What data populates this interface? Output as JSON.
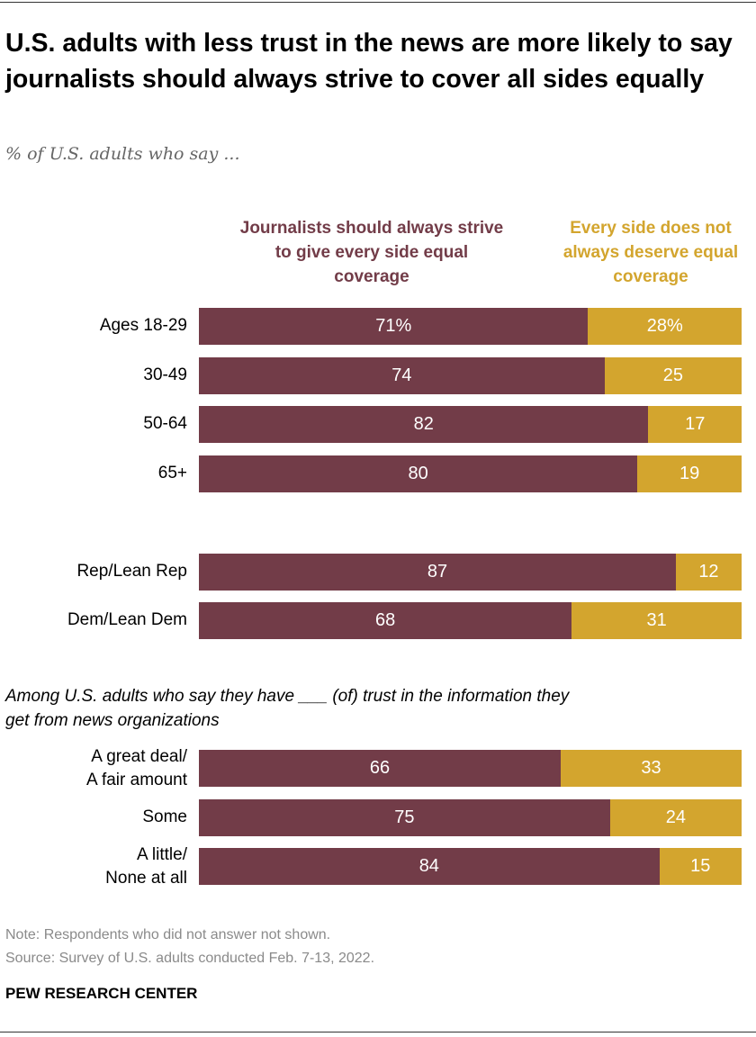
{
  "title": "U.S. adults with less trust in the news are more likely to say journalists should always strive to cover all sides equally",
  "subtitle": "% of U.S. adults who say ...",
  "note": "Note: Respondents who did not answer not shown.",
  "source": "Source: Survey of U.S. adults conducted Feb. 7-13, 2022.",
  "brand": "PEW RESEARCH CENTER",
  "colors": {
    "series1": "#723C48",
    "series2": "#D3A52E"
  },
  "chart_data": {
    "type": "bar",
    "orientation": "horizontal-stacked",
    "categories": [
      "Ages 18-29",
      "30-49",
      "50-64",
      "65+",
      "Rep/Lean Rep",
      "Dem/Lean Dem",
      "A great deal/\nA fair amount",
      "Some",
      "A little/\nNone at all"
    ],
    "group_label": "Among U.S. adults who say they have ___ (of) trust in the information they get from news organizations",
    "series": [
      {
        "name": "Journalists should always strive to give every side equal coverage",
        "values": [
          71,
          74,
          82,
          80,
          87,
          68,
          66,
          75,
          84
        ],
        "labels": [
          "71%",
          "74",
          "82",
          "80",
          "87",
          "68",
          "66",
          "75",
          "84"
        ]
      },
      {
        "name": "Every side does not always deserve equal coverage",
        "values": [
          28,
          25,
          17,
          19,
          12,
          31,
          33,
          24,
          15
        ],
        "labels": [
          "28%",
          "25",
          "17",
          "19",
          "12",
          "31",
          "33",
          "24",
          "15"
        ]
      }
    ],
    "legend_placement": "top",
    "grid": false
  }
}
